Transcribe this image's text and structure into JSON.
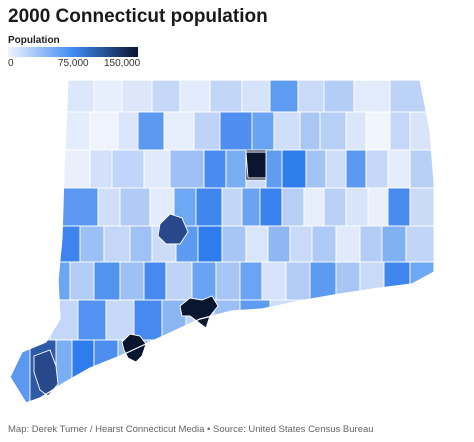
{
  "title": "2000 Connecticut population",
  "legend": {
    "title": "Population",
    "ticks": [
      "0",
      "75,000",
      "150,000"
    ],
    "tick_values": [
      0,
      75000,
      150000
    ],
    "colors": [
      "#eef4ff",
      "#3f8cf0",
      "#0a1530"
    ]
  },
  "source": "Map: Derek Turner / Hearst Connecticut Media • Source: United States Census Bureau",
  "chart_data": {
    "type": "choropleth",
    "metric": "Population",
    "value_range": [
      0,
      150000
    ],
    "color_scale": [
      "#eef4ff",
      "#3f8cf0",
      "#0a1530"
    ],
    "highlighted_regions": [
      {
        "value": 121500,
        "shade": "dark"
      },
      {
        "value": 139500,
        "shade": "darkest"
      },
      {
        "value": 123600,
        "shade": "darkest"
      },
      {
        "value": 117000,
        "shade": "darkest"
      },
      {
        "value": 107300,
        "shade": "dark"
      },
      {
        "value": 80000,
        "shade": "medium"
      }
    ]
  }
}
